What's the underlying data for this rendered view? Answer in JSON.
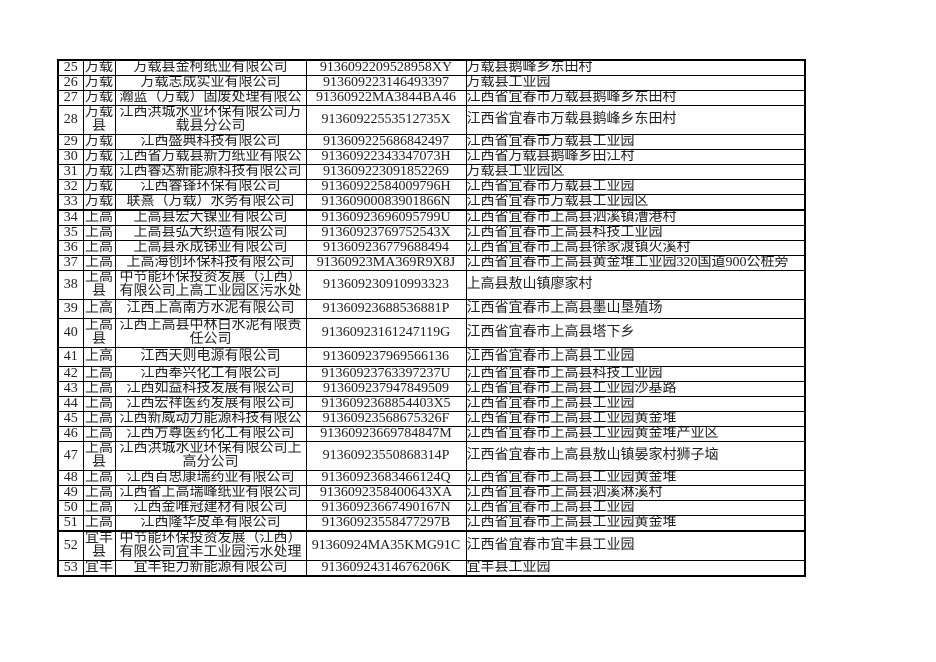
{
  "page": {
    "background_color": "#ffffff",
    "border_color": "#000000",
    "text_color": "#1f1f1f"
  },
  "table": {
    "rows": [
      {
        "no": "25",
        "county": "万载",
        "name": "万载县金柯纸业有限公司",
        "code": "9136092209528958XY",
        "address": "万载县鹅峰乡东田村"
      },
      {
        "no": "26",
        "county": "万载",
        "name": "万载志成实业有限公司",
        "code": "913609223146493397",
        "address": "万载县工业园"
      },
      {
        "no": "27",
        "county": "万载",
        "name": "瀚蓝（万载）固废处理有限公",
        "code": "91360922MA3844BA46",
        "address": "江西省宜春市万载县鹅峰乡东田村"
      },
      {
        "no": "28",
        "county": "万载县",
        "name": "江西洪城水业环保有限公司万载县分公司",
        "code": "91360922553512735X",
        "address": "江西省宜春市万载县鹅峰乡东田村"
      },
      {
        "no": "29",
        "county": "万载",
        "name": "江西盛典科技有限公司",
        "code": "913609225686842497",
        "address": "江西省宜春市万载县工业园"
      },
      {
        "no": "30",
        "county": "万载",
        "name": "江西省万载县新力纸业有限公",
        "code": "91360922343347073H",
        "address": "江西省万载县鹅峰乡田江村"
      },
      {
        "no": "31",
        "county": "万载",
        "name": "江西睿达新能源科技有限公司",
        "code": "913609223091852269",
        "address": "万载县工业园区"
      },
      {
        "no": "32",
        "county": "万载",
        "name": "江西睿锋环保有限公司",
        "code": "91360922584009796H",
        "address": "江西省宜春市万载县工业园"
      },
      {
        "no": "33",
        "county": "万载",
        "name": "联熹（万载）水务有限公司",
        "code": "91360900083901866N",
        "address": "江西省宜春市万载县工业园区",
        "group_end": true
      },
      {
        "no": "34",
        "county": "上高",
        "name": "上高县宏大镍业有限公司",
        "code": "91360923696095799U",
        "address": "江西省宜春市上高县泗溪镇漕港村"
      },
      {
        "no": "35",
        "county": "上高",
        "name": "上高县弘大织造有限公司",
        "code": "91360923769752543X",
        "address": "江西省宜春市上高县科技工业园"
      },
      {
        "no": "36",
        "county": "上高",
        "name": "上高县永成锑业有限公司",
        "code": "913609236779688494",
        "address": "江西省宜春市上高县徐家渡镇火溪村"
      },
      {
        "no": "37",
        "county": "上高",
        "name": "上高海创环保科技有限公司",
        "code": "91360923MA369R9X8J",
        "address": "江西省宜春市上高县黄金堆工业园320国道900公桩旁"
      },
      {
        "no": "38",
        "county": "上高县",
        "name": "中节能环保投资发展（江西）有限公司上高工业园区污水处",
        "code": "913609230910993323",
        "address": "上高县敖山镇廖家村"
      },
      {
        "no": "39",
        "county": "上高",
        "name": "江西上高南方水泥有限公司",
        "code": "91360923688536881P",
        "address": "江西省宜春市上高县墨山垦殖场",
        "size": "mid"
      },
      {
        "no": "40",
        "county": "上高县",
        "name": "江西上高县中林白水泥有限责任公司",
        "code": "91360923161247119G",
        "address": "江西省宜春市上高县塔下乡"
      },
      {
        "no": "41",
        "county": "上高",
        "name": "江西天则电源有限公司",
        "code": "913609237969566136",
        "address": "江西省宜春市上高县工业园",
        "size": "mid"
      },
      {
        "no": "42",
        "county": "上高",
        "name": "江西奉兴化工有限公司",
        "code": "91360923763397237U",
        "address": "江西省宜春市上高县科技工业园"
      },
      {
        "no": "43",
        "county": "上高",
        "name": "江西如益科技发展有限公司",
        "code": "913609237947849509",
        "address": "江西省宜春市上高县工业园沙基路"
      },
      {
        "no": "44",
        "county": "上高",
        "name": "江西宏祥医药发展有限公司",
        "code": "9136092368854403X5",
        "address": "江西省宜春市上高县工业园"
      },
      {
        "no": "45",
        "county": "上高",
        "name": "江西新威动力能源科技有限公",
        "code": "91360923568675326F",
        "address": "江西省宜春市上高县工业园黄金堆"
      },
      {
        "no": "46",
        "county": "上高",
        "name": "江西方尊医药化工有限公司",
        "code": "91360923669784847M",
        "address": "江西省宜春市上高县工业园黄金堆产业区"
      },
      {
        "no": "47",
        "county": "上高县",
        "name": "江西洪城水业环保有限公司上高分公司",
        "code": "91360923550868314P",
        "address": "江西省宜春市上高县敖山镇晏家村狮子垴"
      },
      {
        "no": "48",
        "county": "上高",
        "name": "江西百思康瑞药业有限公司",
        "code": "91360923683466124Q",
        "address": "江西省宜春市上高县工业园黄金堆"
      },
      {
        "no": "49",
        "county": "上高",
        "name": "江西省上高瑞峰纸业有限公司",
        "code": "9136092358400643XA",
        "address": "江西省宜春市上高县泗溪淋溪村"
      },
      {
        "no": "50",
        "county": "上高",
        "name": "江西金唯冠建材有限公司",
        "code": "91360923667490167N",
        "address": "江西省宜春市上高县工业园"
      },
      {
        "no": "51",
        "county": "上高",
        "name": "江西隆华皮革有限公司",
        "code": "91360923558477297B",
        "address": "江西省宜春市上高县工业园黄金堆",
        "group_end": true
      },
      {
        "no": "52",
        "county": "宜丰县",
        "name": "中节能环保投资发展（江西）有限公司宜丰工业园污水处理",
        "code": "91360924MA35KMG91C",
        "address": "江西省宜春市宜丰县工业园"
      },
      {
        "no": "53",
        "county": "宜丰",
        "name": "宜丰钜力新能源有限公司",
        "code": "91360924314676206K",
        "address": "宜丰县工业园"
      }
    ]
  }
}
